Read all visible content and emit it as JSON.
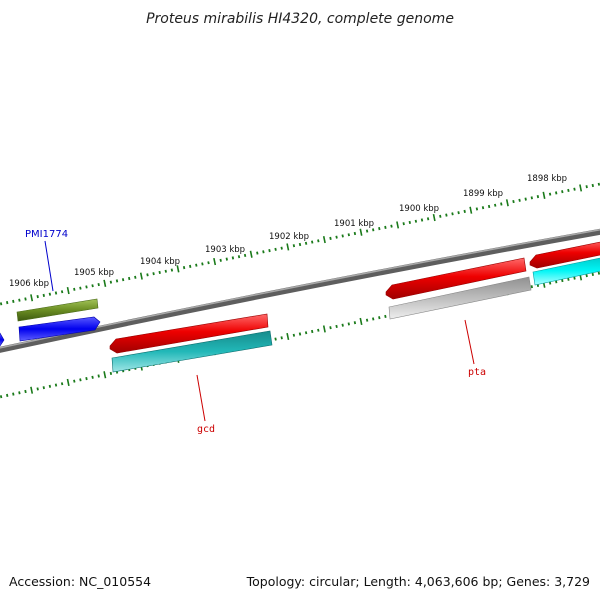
{
  "title": "Proteus mirabilis HI4320, complete genome",
  "footer": {
    "accession": "Accession: NC_010554",
    "summary": "Topology: circular; Length: 4,063,606 bp; Genes: 3,729"
  },
  "ticks": [
    {
      "label": "1906 kbp"
    },
    {
      "label": "1905 kbp"
    },
    {
      "label": "1904 kbp"
    },
    {
      "label": "1903 kbp"
    },
    {
      "label": "1902 kbp"
    },
    {
      "label": "1901 kbp"
    },
    {
      "label": "1900 kbp"
    },
    {
      "label": "1899 kbp"
    },
    {
      "label": "1898 kbp"
    }
  ],
  "genes": [
    {
      "name": "PMI1774",
      "color": "#0000cc"
    },
    {
      "name": "gcd",
      "color": "#cc0000"
    },
    {
      "name": "pta",
      "color": "#cc0000"
    }
  ],
  "colors": {
    "backbone": "#777777",
    "tick": "#1a7a1a",
    "olive": "#6b8e23",
    "blue": "#0000ee",
    "red": "#ee0000",
    "teal": "#1fb5b5",
    "gray": "#bdbdbd",
    "cyan": "#00f0f0"
  }
}
